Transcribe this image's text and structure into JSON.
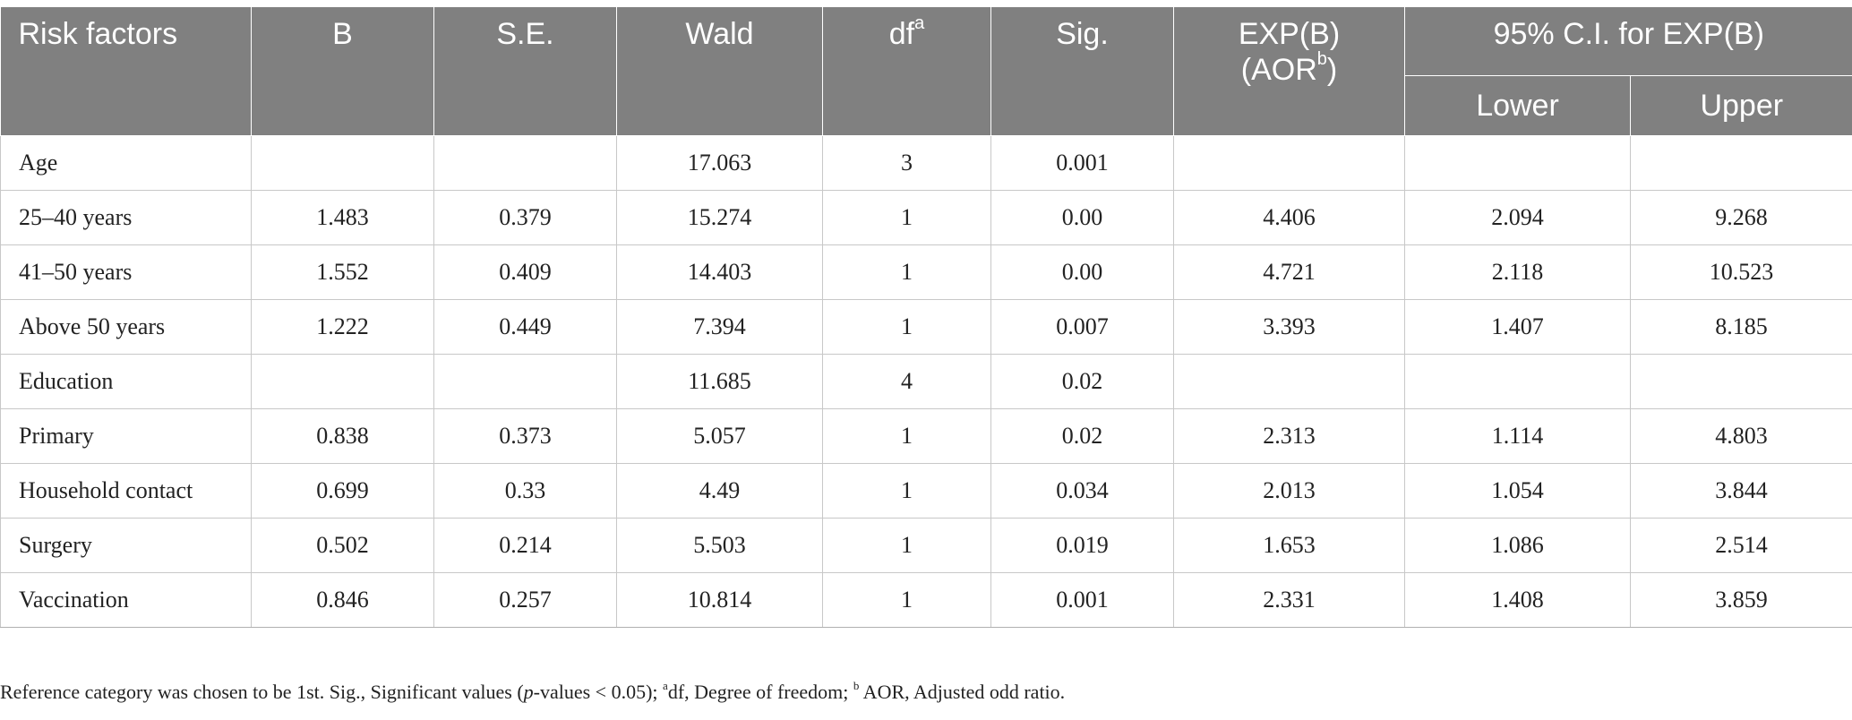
{
  "table": {
    "headers": {
      "risk_factors": "Risk factors",
      "b": "B",
      "se": "S.E.",
      "wald": "Wald",
      "df": "df",
      "df_sup": "a",
      "sig": "Sig.",
      "expb_line1": "EXP(B)",
      "expb_line2_pre": "(AOR",
      "expb_line2_sup": "b",
      "expb_line2_post": ")",
      "ci_group": "95% C.I. for EXP(B)",
      "lower": "Lower",
      "upper": "Upper"
    },
    "rows": [
      [
        "Age",
        "",
        "",
        "17.063",
        "3",
        "0.001",
        "",
        "",
        ""
      ],
      [
        "25–40 years",
        "1.483",
        "0.379",
        "15.274",
        "1",
        "0.00",
        "4.406",
        "2.094",
        "9.268"
      ],
      [
        "41–50 years",
        "1.552",
        "0.409",
        "14.403",
        "1",
        "0.00",
        "4.721",
        "2.118",
        "10.523"
      ],
      [
        "Above 50 years",
        "1.222",
        "0.449",
        "7.394",
        "1",
        "0.007",
        "3.393",
        "1.407",
        "8.185"
      ],
      [
        "Education",
        "",
        "",
        "11.685",
        "4",
        "0.02",
        "",
        "",
        ""
      ],
      [
        "Primary",
        "0.838",
        "0.373",
        "5.057",
        "1",
        "0.02",
        "2.313",
        "1.114",
        "4.803"
      ],
      [
        "Household contact",
        "0.699",
        "0.33",
        "4.49",
        "1",
        "0.034",
        "2.013",
        "1.054",
        "3.844"
      ],
      [
        "Surgery",
        "0.502",
        "0.214",
        "5.503",
        "1",
        "0.019",
        "1.653",
        "1.086",
        "2.514"
      ],
      [
        "Vaccination",
        "0.846",
        "0.257",
        "10.814",
        "1",
        "0.001",
        "2.331",
        "1.408",
        "3.859"
      ]
    ]
  },
  "footnote": {
    "part1": "Reference category was chosen to be 1st. Sig., Significant values (",
    "p": "p",
    "part2": "-values < 0.05); ",
    "sup_a": "a",
    "part3": "df, Degree of freedom; ",
    "sup_b": "b",
    "part4": " AOR, Adjusted odd ratio."
  },
  "colors": {
    "header_bg": "#808080",
    "header_text": "#ffffff",
    "grid_line": "#c8c8c8"
  }
}
